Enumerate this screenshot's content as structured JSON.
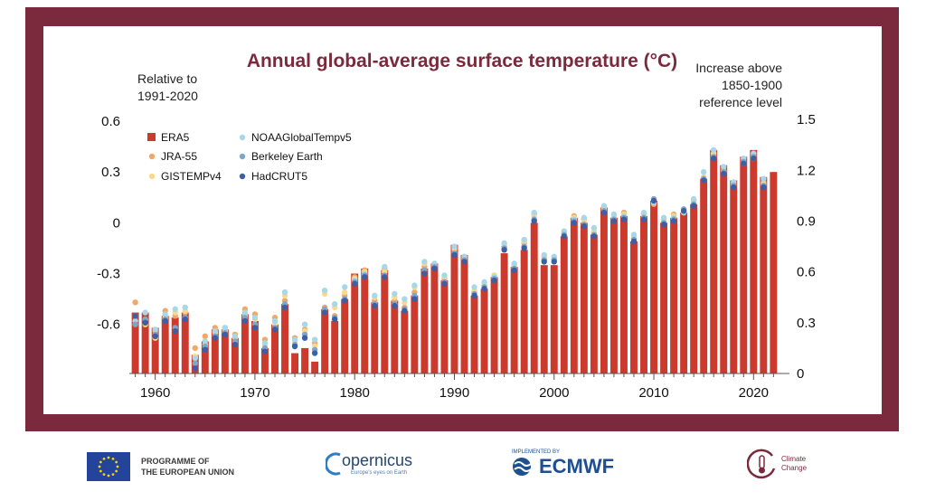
{
  "colors": {
    "frame": "#7a2a3c",
    "title": "#7a2a3c",
    "era5": "#cc3a2e",
    "jra55": "#f0a868",
    "gistemp": "#fad98b",
    "noaa": "#a8d8e8",
    "berkeley": "#7fa6c8",
    "hadcrut": "#3d5fa3"
  },
  "chart_data": {
    "type": "bar",
    "title": "Annual global-average surface temperature (°C)",
    "left_axis_label": [
      "Relative to",
      "1991-2020"
    ],
    "right_axis_label": [
      "Increase above",
      "1850-1900",
      "reference level"
    ],
    "left_ylim": [
      -0.89,
      0.6
    ],
    "left_yticks": [
      "0.6",
      "0.3",
      "0",
      "-0.3",
      "-0.6"
    ],
    "left_ytick_values": [
      0.6,
      0.3,
      0,
      -0.3,
      -0.6
    ],
    "right_yticks": [
      "1.5",
      "1.2",
      "0.9",
      "0.6",
      "0.3",
      "0"
    ],
    "right_ytick_values": [
      1.5,
      1.2,
      0.9,
      0.6,
      0.3,
      0
    ],
    "right_offset": 0.89,
    "xlim": [
      1957.4,
      2023.6
    ],
    "xticks": [
      "1960",
      "1970",
      "1980",
      "1990",
      "2000",
      "2010",
      "2020"
    ],
    "xtick_values": [
      1960,
      1970,
      1980,
      1990,
      2000,
      2010,
      2020
    ],
    "legend": [
      {
        "name": "ERA5",
        "marker": "square",
        "color": "#cc3a2e"
      },
      {
        "name": "JRA-55",
        "marker": "dot",
        "color": "#f0a868"
      },
      {
        "name": "GISTEMPv4",
        "marker": "dot",
        "color": "#fad98b"
      },
      {
        "name": "NOAAGlobalTempv5",
        "marker": "dot",
        "color": "#a8d8e8"
      },
      {
        "name": "Berkeley Earth",
        "marker": "dot",
        "color": "#7fa6c8"
      },
      {
        "name": "HadCRUT5",
        "marker": "dot",
        "color": "#3d5fa3"
      }
    ],
    "legend_placement": "top-left",
    "years": [
      1958,
      1959,
      1960,
      1961,
      1962,
      1963,
      1964,
      1965,
      1966,
      1967,
      1968,
      1969,
      1970,
      1971,
      1972,
      1973,
      1974,
      1975,
      1976,
      1977,
      1978,
      1979,
      1980,
      1981,
      1982,
      1983,
      1984,
      1985,
      1986,
      1987,
      1988,
      1989,
      1990,
      1991,
      1992,
      1993,
      1994,
      1995,
      1996,
      1997,
      1998,
      1999,
      2000,
      2001,
      2002,
      2003,
      2004,
      2005,
      2006,
      2007,
      2008,
      2009,
      2010,
      2011,
      2012,
      2013,
      2014,
      2015,
      2016,
      2017,
      2018,
      2019,
      2020,
      2021,
      2022
    ],
    "era5": [
      -0.53,
      -0.53,
      -0.62,
      -0.55,
      -0.56,
      -0.53,
      -0.78,
      -0.7,
      -0.63,
      -0.63,
      -0.68,
      -0.54,
      -0.58,
      -0.74,
      -0.6,
      -0.48,
      -0.77,
      -0.74,
      -0.82,
      -0.51,
      -0.58,
      -0.45,
      -0.3,
      -0.27,
      -0.47,
      -0.28,
      -0.46,
      -0.52,
      -0.43,
      -0.27,
      -0.24,
      -0.34,
      -0.13,
      -0.19,
      -0.43,
      -0.39,
      -0.32,
      -0.18,
      -0.26,
      -0.16,
      0.0,
      -0.25,
      -0.25,
      -0.08,
      0.03,
      0.0,
      -0.07,
      0.09,
      0.03,
      0.04,
      -0.11,
      0.04,
      0.13,
      0.0,
      0.03,
      0.06,
      0.11,
      0.26,
      0.43,
      0.34,
      0.25,
      0.39,
      0.43,
      0.27,
      0.3
    ],
    "others": [
      [
        -0.47,
        -0.55,
        -0.58,
        -0.6,
        -0.55
      ],
      [
        -0.57,
        -0.6,
        -0.53,
        -0.57,
        -0.59
      ],
      [
        -0.64,
        -0.68,
        -0.63,
        -0.66,
        -0.67
      ],
      [
        -0.52,
        -0.56,
        -0.54,
        -0.57,
        -0.58
      ],
      [
        -0.55,
        -0.53,
        -0.51,
        -0.62,
        -0.64
      ],
      [
        -0.53,
        -0.52,
        -0.5,
        -0.56,
        -0.57
      ],
      [
        -0.74,
        -0.79,
        -0.8,
        -0.83,
        -0.86
      ],
      [
        -0.67,
        -0.72,
        -0.7,
        -0.73,
        -0.75
      ],
      [
        -0.62,
        -0.65,
        -0.64,
        -0.67,
        -0.68
      ],
      [
        -0.62,
        -0.64,
        -0.62,
        -0.65,
        -0.66
      ],
      [
        -0.66,
        -0.68,
        -0.67,
        -0.7,
        -0.72
      ],
      [
        -0.51,
        -0.55,
        -0.53,
        -0.56,
        -0.58
      ],
      [
        -0.54,
        -0.57,
        -0.56,
        -0.6,
        -0.62
      ],
      [
        -0.69,
        -0.72,
        -0.71,
        -0.74,
        -0.76
      ],
      [
        -0.56,
        -0.6,
        -0.58,
        -0.62,
        -0.63
      ],
      [
        -0.46,
        -0.43,
        -0.41,
        -0.48,
        -0.5
      ],
      [
        -0.68,
        -0.7,
        -0.69,
        -0.72,
        -0.73
      ],
      [
        -0.63,
        -0.64,
        -0.6,
        -0.66,
        -0.68
      ],
      [
        -0.71,
        -0.73,
        -0.69,
        -0.75,
        -0.77
      ],
      [
        -0.5,
        -0.42,
        -0.4,
        -0.51,
        -0.53
      ],
      [
        -0.55,
        -0.5,
        -0.48,
        -0.56,
        -0.57
      ],
      [
        -0.43,
        -0.41,
        -0.38,
        -0.45,
        -0.46
      ],
      [
        -0.32,
        -0.33,
        -0.34,
        -0.35,
        -0.36
      ],
      [
        -0.28,
        -0.29,
        -0.3,
        -0.31,
        -0.32
      ],
      [
        -0.46,
        -0.44,
        -0.43,
        -0.48,
        -0.49
      ],
      [
        -0.27,
        -0.29,
        -0.26,
        -0.31,
        -0.32
      ],
      [
        -0.46,
        -0.44,
        -0.42,
        -0.48,
        -0.49
      ],
      [
        -0.5,
        -0.47,
        -0.45,
        -0.51,
        -0.52
      ],
      [
        -0.41,
        -0.38,
        -0.37,
        -0.43,
        -0.45
      ],
      [
        -0.26,
        -0.24,
        -0.23,
        -0.28,
        -0.3
      ],
      [
        -0.25,
        -0.25,
        -0.24,
        -0.26,
        -0.27
      ],
      [
        -0.33,
        -0.32,
        -0.31,
        -0.35,
        -0.36
      ],
      [
        -0.16,
        -0.15,
        -0.14,
        -0.18,
        -0.19
      ],
      [
        -0.2,
        -0.21,
        -0.2,
        -0.22,
        -0.23
      ],
      [
        -0.41,
        -0.4,
        -0.38,
        -0.42,
        -0.43
      ],
      [
        -0.37,
        -0.36,
        -0.35,
        -0.38,
        -0.39
      ],
      [
        -0.31,
        -0.31,
        -0.32,
        -0.33,
        -0.34
      ],
      [
        -0.14,
        -0.13,
        -0.12,
        -0.15,
        -0.16
      ],
      [
        -0.25,
        -0.26,
        -0.24,
        -0.27,
        -0.28
      ],
      [
        -0.12,
        -0.11,
        -0.1,
        -0.14,
        -0.15
      ],
      [
        0.05,
        0.04,
        0.06,
        0.02,
        0.01
      ],
      [
        -0.2,
        -0.21,
        -0.19,
        -0.22,
        -0.23
      ],
      [
        -0.21,
        -0.21,
        -0.2,
        -0.22,
        -0.23
      ],
      [
        -0.05,
        -0.06,
        -0.05,
        -0.07,
        -0.08
      ],
      [
        0.04,
        0.03,
        0.02,
        0.01,
        0.0
      ],
      [
        0.02,
        0.01,
        0.03,
        -0.01,
        -0.02
      ],
      [
        -0.06,
        -0.05,
        -0.03,
        -0.07,
        -0.08
      ],
      [
        0.09,
        0.08,
        0.1,
        0.07,
        0.06
      ],
      [
        0.04,
        0.03,
        0.05,
        0.02,
        0.01
      ],
      [
        0.06,
        0.05,
        0.04,
        0.03,
        0.02
      ],
      [
        -0.09,
        -0.08,
        -0.07,
        -0.1,
        -0.11
      ],
      [
        0.05,
        0.04,
        0.06,
        0.03,
        0.02
      ],
      [
        0.11,
        0.12,
        0.12,
        0.14,
        0.13
      ],
      [
        0.02,
        0.01,
        0.03,
        0.0,
        -0.01
      ],
      [
        0.05,
        0.04,
        0.03,
        0.02,
        0.01
      ],
      [
        0.07,
        0.08,
        0.06,
        0.08,
        0.07
      ],
      [
        0.13,
        0.12,
        0.14,
        0.11,
        0.1
      ],
      [
        0.25,
        0.27,
        0.3,
        0.26,
        0.25
      ],
      [
        0.4,
        0.41,
        0.43,
        0.39,
        0.38
      ],
      [
        0.31,
        0.3,
        0.33,
        0.3,
        0.29
      ],
      [
        0.23,
        0.22,
        0.24,
        0.22,
        0.21
      ],
      [
        0.36,
        0.35,
        0.38,
        0.36,
        0.35
      ],
      [
        0.4,
        0.38,
        0.41,
        0.39,
        0.38
      ],
      [
        0.24,
        0.23,
        0.26,
        0.22,
        0.21
      ],
      [
        null,
        null,
        null,
        null,
        null
      ]
    ]
  },
  "footer": {
    "eu_line1": "PROGRAMME OF",
    "eu_line2": "THE EUROPEAN UNION",
    "copernicus": "opernicus",
    "copernicus_tagline": "Europe's eyes on Earth",
    "ecmwf_small": "IMPLEMENTED BY",
    "ecmwf": "ECMWF",
    "cc_line1": "Climate",
    "cc_line2": "Change"
  }
}
